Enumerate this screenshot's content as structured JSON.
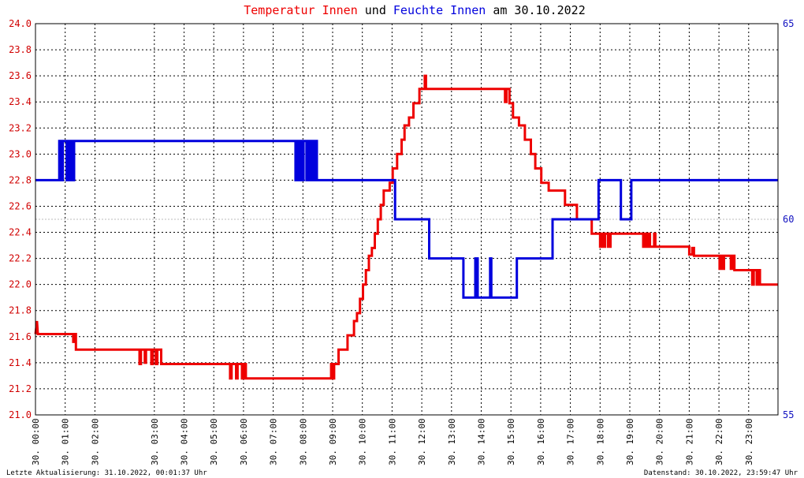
{
  "title": {
    "part1": "Temperatur Innen",
    "part2": " und ",
    "part3": "Feuchte Innen",
    "part4": " am 30.10.2022"
  },
  "footer": {
    "left": "Letzte Aktualisierung: 31.10.2022, 00:01:37 Uhr",
    "right": "Datenstand: 30.10.2022, 23:59:47 Uhr"
  },
  "colors": {
    "temperature": "#ee0000",
    "humidity": "#0000dd",
    "grid": "#000000",
    "frame": "#000000",
    "special_line": "#bbbbbb"
  },
  "chart_data": {
    "type": "line",
    "title": "Temperatur Innen und Feuchte Innen am 30.10.2022",
    "x_unit": "hour of day",
    "xlim": [
      0,
      24
    ],
    "grid": true,
    "x_ticks": [
      {
        "hour": 0,
        "label": "30. 00:00"
      },
      {
        "hour": 1,
        "label": "30. 01:00"
      },
      {
        "hour": 2,
        "label": "30. 02:00"
      },
      {
        "hour": 4,
        "label": "30. 03:00"
      },
      {
        "hour": 5,
        "label": "30. 04:00"
      },
      {
        "hour": 6,
        "label": "30. 05:00"
      },
      {
        "hour": 7,
        "label": "30. 06:00"
      },
      {
        "hour": 8,
        "label": "30. 07:00"
      },
      {
        "hour": 9,
        "label": "30. 08:00"
      },
      {
        "hour": 10,
        "label": "30. 09:00"
      },
      {
        "hour": 11,
        "label": "30. 10:00"
      },
      {
        "hour": 12,
        "label": "30. 11:00"
      },
      {
        "hour": 13,
        "label": "30. 12:00"
      },
      {
        "hour": 14,
        "label": "30. 13:00"
      },
      {
        "hour": 15,
        "label": "30. 14:00"
      },
      {
        "hour": 16,
        "label": "30. 15:00"
      },
      {
        "hour": 17,
        "label": "30. 16:00"
      },
      {
        "hour": 18,
        "label": "30. 17:00"
      },
      {
        "hour": 19,
        "label": "30. 18:00"
      },
      {
        "hour": 20,
        "label": "30. 19:00"
      },
      {
        "hour": 21,
        "label": "30. 20:00"
      },
      {
        "hour": 22,
        "label": "30. 21:00"
      },
      {
        "hour": 23,
        "label": "30. 22:00"
      },
      {
        "hour": 24,
        "label": "30. 23:00"
      }
    ],
    "y_left": {
      "ylim": [
        21.0,
        24.0
      ],
      "ticks": [
        "21.0",
        "21.2",
        "21.4",
        "21.6",
        "21.8",
        "22.0",
        "22.2",
        "22.4",
        "22.6",
        "22.8",
        "23.0",
        "23.2",
        "23.4",
        "23.6",
        "23.8",
        "24.0"
      ]
    },
    "y_right": {
      "ylim": [
        55,
        65
      ],
      "ticks": [
        "55",
        "60",
        "65"
      ]
    },
    "series": [
      {
        "name": "Temperatur Innen",
        "axis": "left",
        "color": "#ee0000",
        "points": [
          [
            0.0,
            21.62
          ],
          [
            0.05,
            21.72
          ],
          [
            0.08,
            21.62
          ],
          [
            1.27,
            21.62
          ],
          [
            1.27,
            21.56
          ],
          [
            1.32,
            21.56
          ],
          [
            1.32,
            21.62
          ],
          [
            1.36,
            21.62
          ],
          [
            1.36,
            21.5
          ],
          [
            3.5,
            21.5
          ],
          [
            3.5,
            21.39
          ],
          [
            3.55,
            21.39
          ],
          [
            3.55,
            21.5
          ],
          [
            3.68,
            21.5
          ],
          [
            3.68,
            21.4
          ],
          [
            3.72,
            21.4
          ],
          [
            3.72,
            21.5
          ],
          [
            3.9,
            21.5
          ],
          [
            3.9,
            21.39
          ],
          [
            3.95,
            21.39
          ],
          [
            3.95,
            21.5
          ],
          [
            4.05,
            21.5
          ],
          [
            4.05,
            21.39
          ],
          [
            4.1,
            21.39
          ],
          [
            4.1,
            21.5
          ],
          [
            4.23,
            21.5
          ],
          [
            4.23,
            21.39
          ],
          [
            6.55,
            21.39
          ],
          [
            6.55,
            21.28
          ],
          [
            6.6,
            21.28
          ],
          [
            6.6,
            21.39
          ],
          [
            6.75,
            21.39
          ],
          [
            6.75,
            21.28
          ],
          [
            6.8,
            21.28
          ],
          [
            6.8,
            21.39
          ],
          [
            6.95,
            21.39
          ],
          [
            6.95,
            21.28
          ],
          [
            7.0,
            21.28
          ],
          [
            7.0,
            21.39
          ],
          [
            7.08,
            21.39
          ],
          [
            7.08,
            21.28
          ],
          [
            9.95,
            21.28
          ],
          [
            9.95,
            21.39
          ],
          [
            10.0,
            21.39
          ],
          [
            10.0,
            21.28
          ],
          [
            10.05,
            21.28
          ],
          [
            10.05,
            21.39
          ],
          [
            10.2,
            21.39
          ],
          [
            10.2,
            21.5
          ],
          [
            10.5,
            21.5
          ],
          [
            10.5,
            21.61
          ],
          [
            10.72,
            21.61
          ],
          [
            10.72,
            21.72
          ],
          [
            10.82,
            21.72
          ],
          [
            10.82,
            21.78
          ],
          [
            10.92,
            21.78
          ],
          [
            10.92,
            21.89
          ],
          [
            11.02,
            21.89
          ],
          [
            11.02,
            22.0
          ],
          [
            11.12,
            22.0
          ],
          [
            11.12,
            22.11
          ],
          [
            11.22,
            22.11
          ],
          [
            11.22,
            22.22
          ],
          [
            11.32,
            22.22
          ],
          [
            11.32,
            22.28
          ],
          [
            11.42,
            22.28
          ],
          [
            11.42,
            22.39
          ],
          [
            11.52,
            22.39
          ],
          [
            11.52,
            22.5
          ],
          [
            11.62,
            22.5
          ],
          [
            11.62,
            22.61
          ],
          [
            11.72,
            22.61
          ],
          [
            11.72,
            22.72
          ],
          [
            11.92,
            22.72
          ],
          [
            11.92,
            22.78
          ],
          [
            12.02,
            22.78
          ],
          [
            12.02,
            22.89
          ],
          [
            12.17,
            22.89
          ],
          [
            12.17,
            23.0
          ],
          [
            12.32,
            23.0
          ],
          [
            12.32,
            23.11
          ],
          [
            12.42,
            23.11
          ],
          [
            12.42,
            23.22
          ],
          [
            12.57,
            23.22
          ],
          [
            12.57,
            23.28
          ],
          [
            12.72,
            23.28
          ],
          [
            12.72,
            23.39
          ],
          [
            12.92,
            23.39
          ],
          [
            12.92,
            23.5
          ],
          [
            13.1,
            23.5
          ],
          [
            13.1,
            23.6
          ],
          [
            13.14,
            23.6
          ],
          [
            13.14,
            23.5
          ],
          [
            15.8,
            23.5
          ],
          [
            15.8,
            23.4
          ],
          [
            15.85,
            23.4
          ],
          [
            15.85,
            23.5
          ],
          [
            15.95,
            23.5
          ],
          [
            15.95,
            23.39
          ],
          [
            16.07,
            23.39
          ],
          [
            16.07,
            23.28
          ],
          [
            16.27,
            23.28
          ],
          [
            16.27,
            23.22
          ],
          [
            16.47,
            23.22
          ],
          [
            16.47,
            23.11
          ],
          [
            16.67,
            23.11
          ],
          [
            16.67,
            23.0
          ],
          [
            16.82,
            23.0
          ],
          [
            16.82,
            22.89
          ],
          [
            17.02,
            22.89
          ],
          [
            17.02,
            22.78
          ],
          [
            17.27,
            22.78
          ],
          [
            17.27,
            22.72
          ],
          [
            17.82,
            22.72
          ],
          [
            17.82,
            22.61
          ],
          [
            18.22,
            22.61
          ],
          [
            18.22,
            22.5
          ],
          [
            18.72,
            22.5
          ],
          [
            18.72,
            22.39
          ],
          [
            19.0,
            22.39
          ],
          [
            19.0,
            22.29
          ],
          [
            19.05,
            22.29
          ],
          [
            19.05,
            22.39
          ],
          [
            19.12,
            22.39
          ],
          [
            19.12,
            22.29
          ],
          [
            19.17,
            22.29
          ],
          [
            19.17,
            22.39
          ],
          [
            19.27,
            22.39
          ],
          [
            19.27,
            22.29
          ],
          [
            19.35,
            22.29
          ],
          [
            19.35,
            22.39
          ],
          [
            20.45,
            22.39
          ],
          [
            20.45,
            22.29
          ],
          [
            20.5,
            22.29
          ],
          [
            20.5,
            22.39
          ],
          [
            20.58,
            22.39
          ],
          [
            20.58,
            22.29
          ],
          [
            20.63,
            22.29
          ],
          [
            20.63,
            22.39
          ],
          [
            20.68,
            22.39
          ],
          [
            20.68,
            22.29
          ],
          [
            20.82,
            22.29
          ],
          [
            20.82,
            22.39
          ],
          [
            20.86,
            22.39
          ],
          [
            20.86,
            22.29
          ],
          [
            22.0,
            22.29
          ],
          [
            22.0,
            22.23
          ],
          [
            22.1,
            22.23
          ],
          [
            22.1,
            22.28
          ],
          [
            22.16,
            22.28
          ],
          [
            22.16,
            22.22
          ],
          [
            23.02,
            22.22
          ],
          [
            23.02,
            22.12
          ],
          [
            23.06,
            22.12
          ],
          [
            23.06,
            22.22
          ],
          [
            23.12,
            22.22
          ],
          [
            23.12,
            22.12
          ],
          [
            23.17,
            22.12
          ],
          [
            23.17,
            22.22
          ],
          [
            23.4,
            22.22
          ],
          [
            23.4,
            22.12
          ],
          [
            23.45,
            22.12
          ],
          [
            23.45,
            22.22
          ],
          [
            23.52,
            22.22
          ],
          [
            23.52,
            22.11
          ],
          [
            24.12,
            22.11
          ],
          [
            24.12,
            22.0
          ],
          [
            24.17,
            22.0
          ],
          [
            24.17,
            22.11
          ],
          [
            24.27,
            22.11
          ],
          [
            24.27,
            22.0
          ],
          [
            24.33,
            22.0
          ],
          [
            24.33,
            22.11
          ],
          [
            24.38,
            22.11
          ],
          [
            24.38,
            22.0
          ],
          [
            25.1,
            22.0
          ]
        ]
      },
      {
        "name": "Feuchte Innen",
        "axis": "right",
        "color": "#0000dd",
        "points": [
          [
            0.0,
            61.0
          ],
          [
            0.8,
            61.0
          ],
          [
            0.8,
            62.0
          ],
          [
            0.88,
            62.0
          ],
          [
            0.88,
            61.0
          ],
          [
            0.92,
            61.0
          ],
          [
            0.92,
            62.0
          ],
          [
            1.05,
            62.0
          ],
          [
            1.05,
            61.0
          ],
          [
            1.1,
            61.0
          ],
          [
            1.1,
            62.0
          ],
          [
            1.15,
            62.0
          ],
          [
            1.15,
            61.0
          ],
          [
            1.2,
            61.0
          ],
          [
            1.2,
            62.0
          ],
          [
            1.25,
            62.0
          ],
          [
            1.25,
            61.0
          ],
          [
            1.3,
            61.0
          ],
          [
            1.3,
            62.0
          ],
          [
            8.75,
            62.0
          ],
          [
            8.75,
            61.0
          ],
          [
            8.8,
            61.0
          ],
          [
            8.8,
            62.0
          ],
          [
            8.85,
            62.0
          ],
          [
            8.85,
            61.0
          ],
          [
            8.9,
            61.0
          ],
          [
            8.9,
            62.0
          ],
          [
            8.97,
            62.0
          ],
          [
            8.97,
            61.0
          ],
          [
            9.02,
            61.0
          ],
          [
            9.02,
            62.0
          ],
          [
            9.12,
            62.0
          ],
          [
            9.12,
            61.0
          ],
          [
            9.17,
            61.0
          ],
          [
            9.17,
            62.0
          ],
          [
            9.25,
            62.0
          ],
          [
            9.25,
            61.0
          ],
          [
            9.3,
            61.0
          ],
          [
            9.3,
            62.0
          ],
          [
            9.38,
            62.0
          ],
          [
            9.38,
            61.0
          ],
          [
            9.42,
            61.0
          ],
          [
            9.42,
            62.0
          ],
          [
            9.47,
            62.0
          ],
          [
            9.47,
            61.0
          ],
          [
            12.1,
            61.0
          ],
          [
            12.1,
            60.0
          ],
          [
            13.25,
            60.0
          ],
          [
            13.25,
            59.0
          ],
          [
            14.4,
            59.0
          ],
          [
            14.4,
            58.0
          ],
          [
            14.8,
            58.0
          ],
          [
            14.8,
            59.0
          ],
          [
            14.88,
            59.0
          ],
          [
            14.88,
            58.0
          ],
          [
            15.3,
            58.0
          ],
          [
            15.3,
            59.0
          ],
          [
            15.34,
            59.0
          ],
          [
            15.34,
            58.0
          ],
          [
            16.2,
            58.0
          ],
          [
            16.2,
            59.0
          ],
          [
            17.4,
            59.0
          ],
          [
            17.4,
            60.0
          ],
          [
            18.95,
            60.0
          ],
          [
            18.95,
            61.0
          ],
          [
            19.7,
            61.0
          ],
          [
            19.7,
            60.0
          ],
          [
            20.05,
            60.0
          ],
          [
            20.05,
            61.0
          ],
          [
            25.1,
            61.0
          ]
        ]
      }
    ]
  }
}
